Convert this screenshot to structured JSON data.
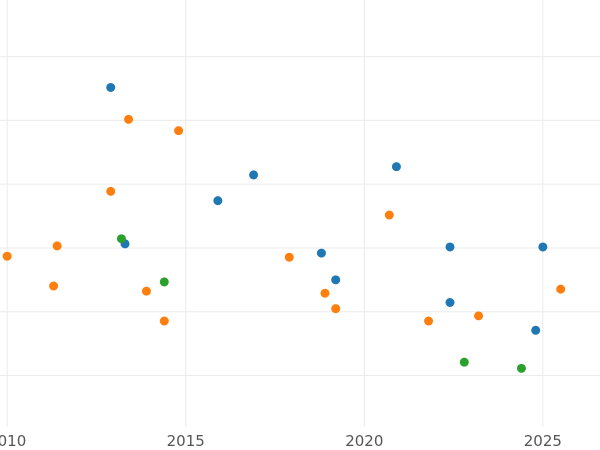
{
  "chart_data": {
    "type": "scatter",
    "title": "",
    "xlabel": "",
    "ylabel": "",
    "xlim": [
      2009.8,
      2026.6
    ],
    "ylim": [
      0,
      415
    ],
    "grid": true,
    "legend": "none",
    "x_ticks": [
      2010,
      2015,
      2020,
      2025
    ],
    "x_tick_labels": [
      "2010",
      "2015",
      "2020",
      "2025"
    ],
    "y_grid_values": [
      50,
      112,
      174,
      236,
      298,
      360
    ],
    "series": [
      {
        "color": "#1f77b4",
        "points": [
          {
            "x": 2012.9,
            "y": 330
          },
          {
            "x": 2013.3,
            "y": 178
          },
          {
            "x": 2015.9,
            "y": 220
          },
          {
            "x": 2016.9,
            "y": 245
          },
          {
            "x": 2018.8,
            "y": 169
          },
          {
            "x": 2019.2,
            "y": 143
          },
          {
            "x": 2020.9,
            "y": 253
          },
          {
            "x": 2022.4,
            "y": 175
          },
          {
            "x": 2022.4,
            "y": 121
          },
          {
            "x": 2024.8,
            "y": 94
          },
          {
            "x": 2025.0,
            "y": 175
          }
        ]
      },
      {
        "color": "#ff7f0e",
        "points": [
          {
            "x": 2010.0,
            "y": 166
          },
          {
            "x": 2011.3,
            "y": 137
          },
          {
            "x": 2011.4,
            "y": 176
          },
          {
            "x": 2012.9,
            "y": 229
          },
          {
            "x": 2013.4,
            "y": 299
          },
          {
            "x": 2013.9,
            "y": 132
          },
          {
            "x": 2014.4,
            "y": 103
          },
          {
            "x": 2014.8,
            "y": 288
          },
          {
            "x": 2017.9,
            "y": 165
          },
          {
            "x": 2018.9,
            "y": 130
          },
          {
            "x": 2019.2,
            "y": 115
          },
          {
            "x": 2020.7,
            "y": 206
          },
          {
            "x": 2021.8,
            "y": 103
          },
          {
            "x": 2023.2,
            "y": 108
          },
          {
            "x": 2025.5,
            "y": 134
          }
        ]
      },
      {
        "color": "#2ca02c",
        "points": [
          {
            "x": 2013.2,
            "y": 183
          },
          {
            "x": 2014.4,
            "y": 141
          },
          {
            "x": 2022.8,
            "y": 63
          },
          {
            "x": 2024.4,
            "y": 57
          }
        ]
      }
    ]
  }
}
